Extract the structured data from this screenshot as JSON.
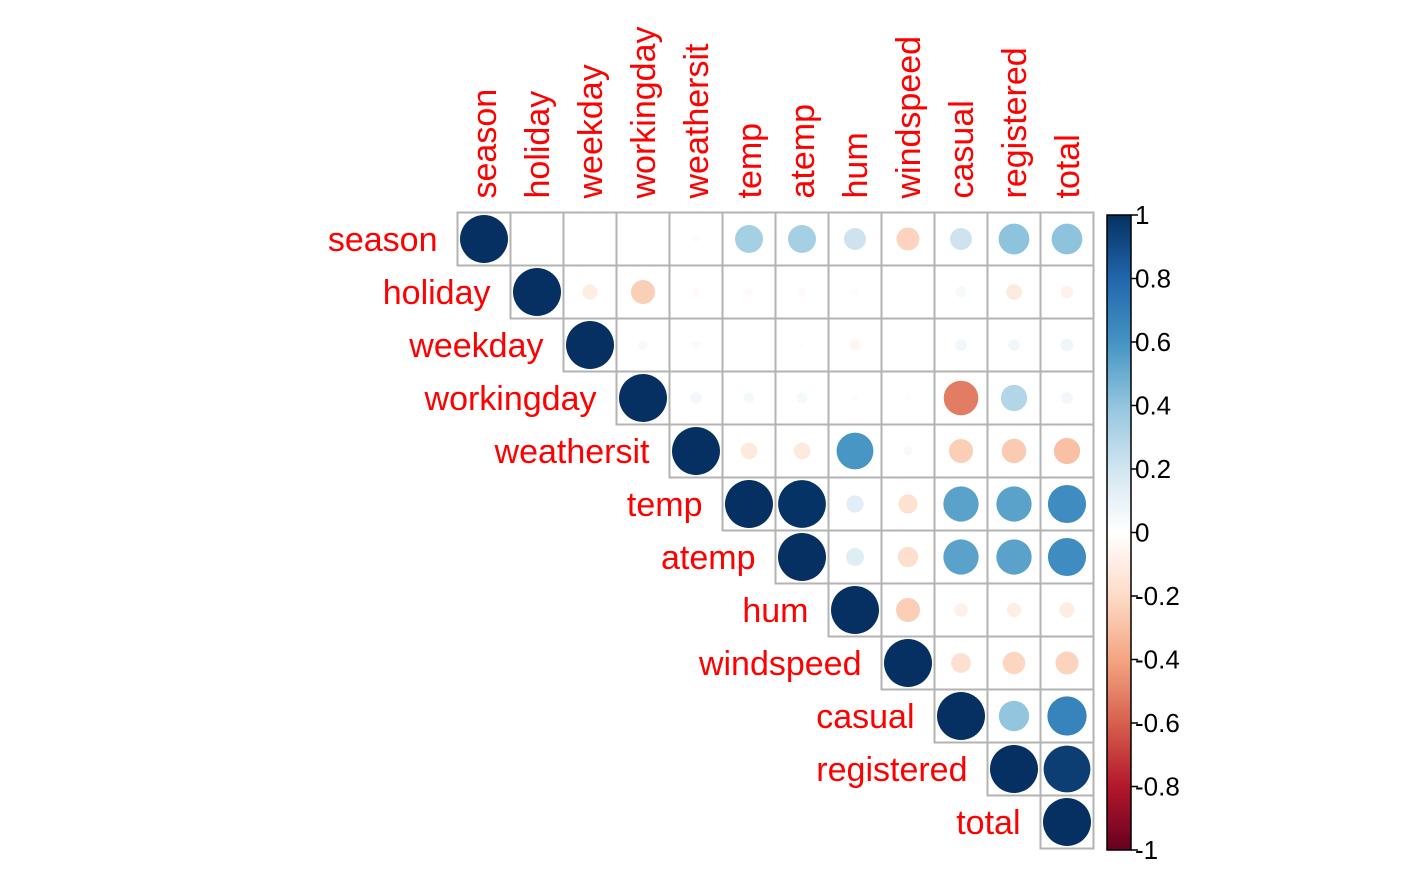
{
  "chart_data": {
    "type": "heatmap",
    "style": "corrplot upper triangle, circles sized and colored by correlation",
    "variables": [
      "season",
      "holiday",
      "weekday",
      "workingday",
      "weathersit",
      "temp",
      "atemp",
      "hum",
      "windspeed",
      "casual",
      "registered",
      "total"
    ],
    "matrix": [
      [
        1.0,
        0.01,
        0.0,
        0.01,
        0.02,
        0.34,
        0.34,
        0.21,
        -0.23,
        0.21,
        0.41,
        0.41
      ],
      [
        0.01,
        1.0,
        -0.1,
        -0.25,
        -0.03,
        -0.03,
        -0.03,
        -0.02,
        0.01,
        0.05,
        -0.11,
        -0.07
      ],
      [
        0.0,
        -0.1,
        1.0,
        0.04,
        0.03,
        0.0,
        -0.01,
        -0.05,
        0.01,
        0.06,
        0.06,
        0.07
      ],
      [
        0.01,
        -0.25,
        0.04,
        1.0,
        0.06,
        0.05,
        0.05,
        0.02,
        -0.02,
        -0.52,
        0.3,
        0.06
      ],
      [
        0.02,
        -0.03,
        0.03,
        0.06,
        1.0,
        -0.12,
        -0.12,
        0.59,
        0.04,
        -0.25,
        -0.26,
        -0.3
      ],
      [
        0.34,
        -0.03,
        0.0,
        0.05,
        -0.12,
        1.0,
        0.99,
        0.13,
        -0.16,
        0.54,
        0.54,
        0.63
      ],
      [
        0.34,
        -0.03,
        -0.01,
        0.05,
        -0.12,
        0.99,
        1.0,
        0.14,
        -0.18,
        0.54,
        0.54,
        0.63
      ],
      [
        0.21,
        -0.02,
        -0.05,
        0.02,
        0.59,
        0.13,
        0.14,
        1.0,
        -0.25,
        -0.08,
        -0.09,
        -0.1
      ],
      [
        -0.23,
        0.01,
        0.01,
        -0.02,
        0.04,
        -0.16,
        -0.18,
        -0.25,
        1.0,
        -0.17,
        -0.22,
        -0.23
      ],
      [
        0.21,
        0.05,
        0.06,
        -0.52,
        -0.25,
        0.54,
        0.54,
        -0.08,
        -0.17,
        1.0,
        0.4,
        0.67
      ],
      [
        0.41,
        -0.11,
        0.06,
        0.3,
        -0.26,
        0.54,
        0.54,
        -0.09,
        -0.22,
        0.4,
        1.0,
        0.95
      ],
      [
        0.41,
        -0.07,
        0.07,
        0.06,
        -0.3,
        0.63,
        0.63,
        -0.1,
        -0.23,
        0.67,
        0.95,
        1.0
      ]
    ],
    "colorbar": {
      "range": [
        -1,
        1
      ],
      "tick_labels": [
        "1",
        "0.8",
        "0.6",
        "0.4",
        "0.2",
        "0",
        "-0.2",
        "-0.4",
        "-0.6",
        "-0.8",
        "-1"
      ],
      "tick_values": [
        1,
        0.8,
        0.6,
        0.4,
        0.2,
        0,
        -0.2,
        -0.4,
        -0.6,
        -0.8,
        -1
      ],
      "colors": {
        "neg1": "#67001f",
        "neg08": "#b2182b",
        "neg06": "#d6604d",
        "neg04": "#f4a582",
        "neg02": "#fddbc7",
        "zero": "#ffffff",
        "pos02": "#d1e5f0",
        "pos04": "#92c5de",
        "pos06": "#4393c3",
        "pos08": "#2166ac",
        "pos1": "#053061"
      }
    },
    "label_color": "#ff0000",
    "grid_color": "#b3b3b3"
  }
}
